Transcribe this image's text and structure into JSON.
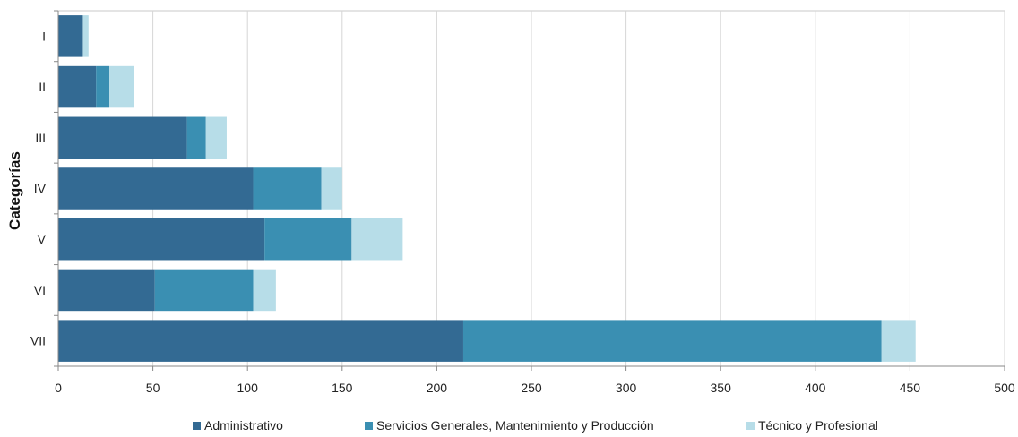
{
  "chart_data": {
    "type": "bar",
    "orientation": "horizontal",
    "stacked": true,
    "categories": [
      "I",
      "II",
      "III",
      "IV",
      "V",
      "VI",
      "VII"
    ],
    "series": [
      {
        "name": "Administrativo",
        "color": "#336a93",
        "values": [
          13,
          20,
          68,
          103,
          109,
          51,
          214
        ]
      },
      {
        "name": "Servicios Generales, Mantenimiento y Producción",
        "color": "#3a8fb2",
        "values": [
          0,
          7,
          10,
          36,
          46,
          52,
          221
        ]
      },
      {
        "name": "Técnico y Profesional",
        "color": "#b7dde8",
        "values": [
          3,
          13,
          11,
          11,
          27,
          12,
          18
        ]
      }
    ],
    "xlim": [
      0,
      500
    ],
    "xticks": [
      "0",
      "50",
      "100",
      "150",
      "200",
      "250",
      "300",
      "350",
      "400",
      "450",
      "500"
    ],
    "ylabel": "Categorías",
    "xlabel": "",
    "grid": true,
    "legend_position": "bottom"
  }
}
